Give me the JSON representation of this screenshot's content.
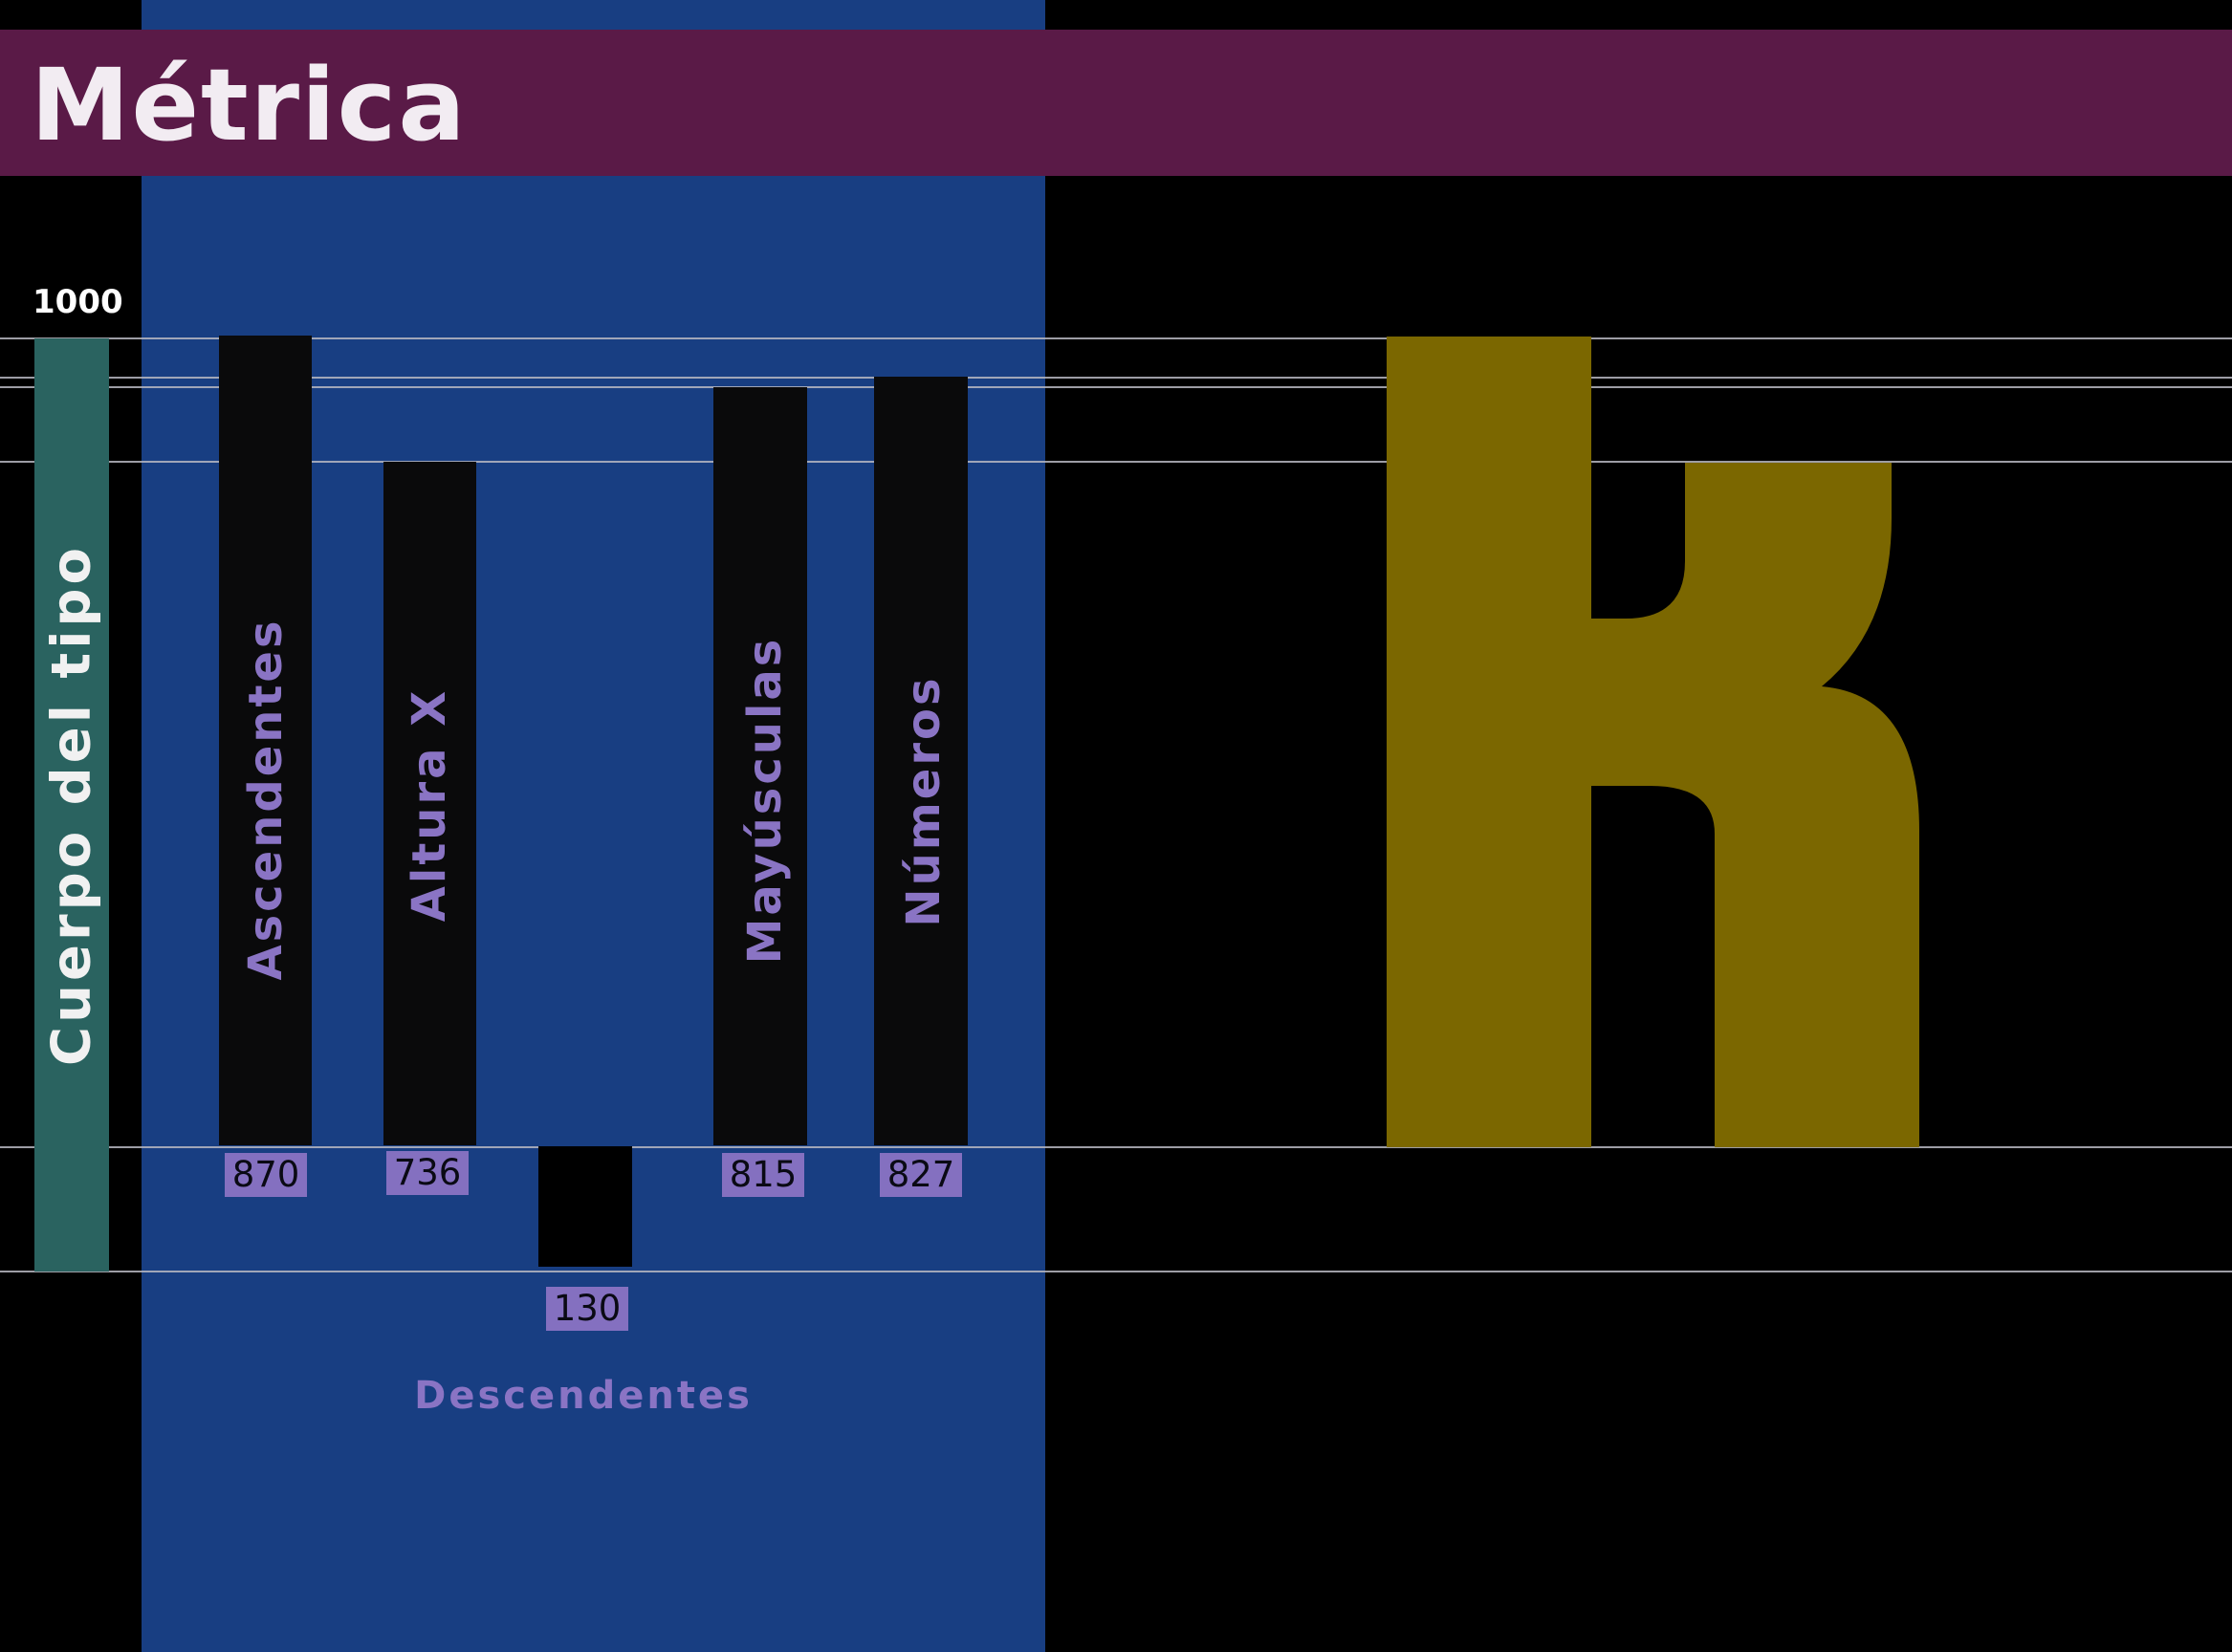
{
  "title": "Métrica",
  "body": {
    "label": "Cuerpo del tipo",
    "value": "1000"
  },
  "metrics": [
    {
      "key": "ascenders",
      "label": "Ascendentes",
      "value": "870"
    },
    {
      "key": "x-height",
      "label": "Altura X",
      "value": "736"
    },
    {
      "key": "capitals",
      "label": "Mayúsculas",
      "value": "815"
    },
    {
      "key": "numbers",
      "label": "Números",
      "value": "827"
    }
  ],
  "descenders": {
    "label": "Descendentes",
    "value": "130"
  },
  "colors": {
    "title_bar": "#5a1a47",
    "panel": "#183e82",
    "body_bar": "#2a6360",
    "accent_label": "#8a74c4",
    "glyph": "#7b6700"
  },
  "glyph": "k"
}
